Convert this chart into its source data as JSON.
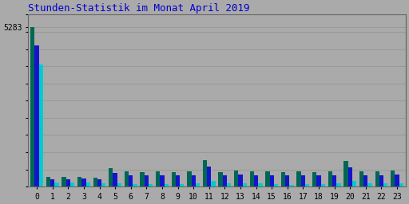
{
  "title": "Stunden-Statistik im Monat April 2019",
  "hours": [
    0,
    1,
    2,
    3,
    4,
    5,
    6,
    7,
    8,
    9,
    10,
    11,
    12,
    13,
    14,
    15,
    16,
    17,
    18,
    19,
    20,
    21,
    22,
    23
  ],
  "ytick_label": "5283",
  "ytick_value": 5283,
  "seiten": [
    5283,
    320,
    310,
    330,
    300,
    620,
    500,
    490,
    495,
    485,
    515,
    880,
    485,
    540,
    515,
    495,
    485,
    495,
    485,
    515,
    860,
    495,
    495,
    540
  ],
  "dateien": [
    4680,
    255,
    248,
    265,
    243,
    460,
    365,
    362,
    365,
    362,
    385,
    660,
    362,
    405,
    385,
    368,
    362,
    368,
    362,
    385,
    648,
    368,
    368,
    405
  ],
  "anfragen": [
    4050,
    133,
    128,
    143,
    123,
    120,
    92,
    92,
    92,
    92,
    102,
    195,
    102,
    123,
    102,
    92,
    67,
    92,
    92,
    102,
    195,
    102,
    102,
    123
  ],
  "color_seiten": "#006655",
  "color_dateien": "#1414cc",
  "color_anfragen": "#00cccc",
  "bg_color": "#aaaaaa",
  "grid_color": "#999999",
  "title_color": "#0000cc",
  "ylabel_color_seiten": "#006655",
  "ylabel_color_dateien": "#1414cc",
  "ylabel_color_anfragen": "#00cccc",
  "ylim_max": 5700,
  "bar_width": 0.27,
  "n_gridlines": 10
}
